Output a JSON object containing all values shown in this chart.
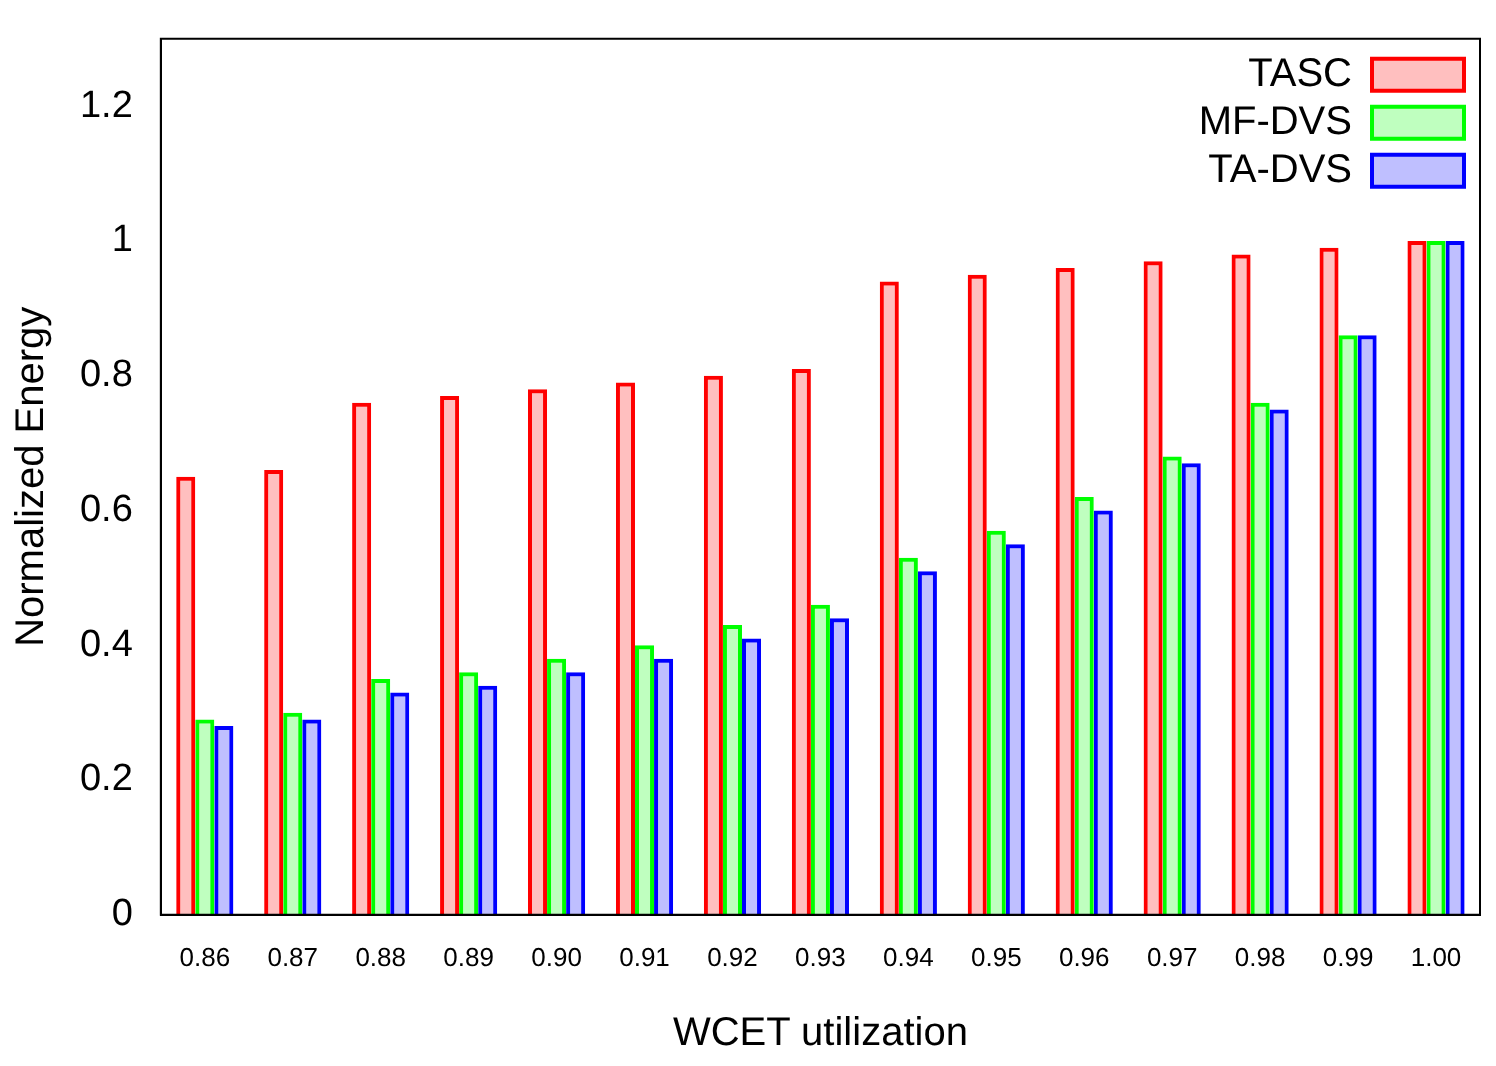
{
  "chart_data": {
    "type": "bar",
    "xlabel": "WCET utilization",
    "ylabel": "Normalized Energy",
    "categories": [
      "0.86",
      "0.87",
      "0.88",
      "0.89",
      "0.90",
      "0.91",
      "0.92",
      "0.93",
      "0.94",
      "0.95",
      "0.96",
      "0.97",
      "0.98",
      "0.99",
      "1.00"
    ],
    "series": [
      {
        "name": "TASC",
        "color": "#ff0000",
        "values": [
          0.65,
          0.66,
          0.76,
          0.77,
          0.78,
          0.79,
          0.8,
          0.81,
          0.94,
          0.95,
          0.96,
          0.97,
          0.98,
          0.99,
          1.0
        ]
      },
      {
        "name": "MF-DVS",
        "color": "#00ff00",
        "values": [
          0.29,
          0.3,
          0.35,
          0.36,
          0.38,
          0.4,
          0.43,
          0.46,
          0.53,
          0.57,
          0.62,
          0.68,
          0.76,
          0.86,
          1.0
        ]
      },
      {
        "name": "TA-DVS",
        "color": "#0000ff",
        "values": [
          0.28,
          0.29,
          0.33,
          0.34,
          0.36,
          0.38,
          0.41,
          0.44,
          0.51,
          0.55,
          0.6,
          0.67,
          0.75,
          0.86,
          1.0
        ]
      }
    ],
    "ylim": [
      0,
      1.3
    ],
    "yticks": [
      0,
      0.2,
      0.4,
      0.6,
      0.8,
      1,
      1.2
    ],
    "grid": false,
    "legend": "top right"
  }
}
